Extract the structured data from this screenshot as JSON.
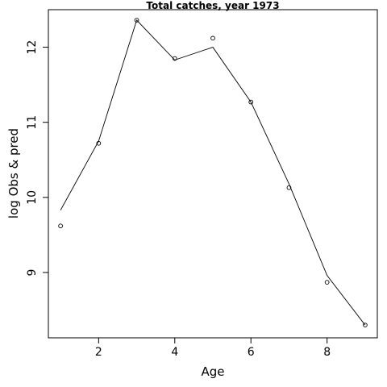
{
  "chart_data": {
    "type": "line",
    "title": "Total catches, year 1973",
    "xlabel": "Age",
    "ylabel": "log Obs & pred",
    "xlim": [
      0.68,
      9.32
    ],
    "ylim": [
      8.13,
      12.5
    ],
    "xticks": [
      2,
      4,
      6,
      8
    ],
    "yticks": [
      9,
      10,
      11,
      12
    ],
    "grid": false,
    "x": [
      1,
      2,
      3,
      4,
      5,
      6,
      7,
      8,
      9
    ],
    "series": [
      {
        "style": "points",
        "values": [
          9.62,
          10.72,
          12.36,
          11.85,
          12.12,
          11.27,
          10.13,
          8.87,
          8.3
        ]
      },
      {
        "style": "line",
        "values": [
          9.83,
          10.75,
          12.36,
          11.83,
          12.0,
          11.27,
          10.18,
          8.96,
          8.3
        ]
      }
    ]
  }
}
